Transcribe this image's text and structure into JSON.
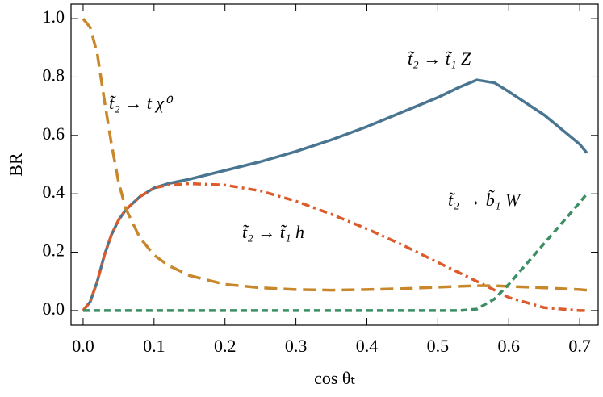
{
  "chart_data": {
    "type": "line",
    "xlabel": "cos θₜ",
    "ylabel": "BR",
    "annotations": [
      "t̃₂ → t χ⁰",
      "t̃₂ → t̃₁ Z",
      "t̃₂ → t̃₁ h",
      "t̃₂ → b̃₁ W"
    ],
    "x": [
      0,
      0.01,
      0.02,
      0.03,
      0.04,
      0.05,
      0.06,
      0.08,
      0.1,
      0.12,
      0.15,
      0.2,
      0.25,
      0.3,
      0.35,
      0.4,
      0.45,
      0.5,
      0.53,
      0.555,
      0.58,
      0.6,
      0.65,
      0.7,
      0.71
    ],
    "series": [
      {
        "color": "#4a7590",
        "dash": "none",
        "values": [
          0,
          0.03,
          0.1,
          0.19,
          0.26,
          0.31,
          0.345,
          0.39,
          0.42,
          0.435,
          0.45,
          0.48,
          0.51,
          0.545,
          0.585,
          0.63,
          0.68,
          0.73,
          0.765,
          0.79,
          0.78,
          0.75,
          0.67,
          0.57,
          0.54
        ]
      },
      {
        "color": "#db5b2b",
        "dash": "10,5,3,5",
        "values": [
          0,
          0.03,
          0.1,
          0.19,
          0.26,
          0.31,
          0.345,
          0.39,
          0.42,
          0.43,
          0.435,
          0.43,
          0.41,
          0.375,
          0.33,
          0.28,
          0.225,
          0.165,
          0.13,
          0.1,
          0.07,
          0.045,
          0.01,
          0,
          0
        ]
      },
      {
        "color": "#c8872a",
        "dash": "16,8",
        "values": [
          1.0,
          0.97,
          0.88,
          0.72,
          0.57,
          0.44,
          0.35,
          0.25,
          0.19,
          0.155,
          0.12,
          0.09,
          0.078,
          0.072,
          0.07,
          0.072,
          0.075,
          0.08,
          0.083,
          0.085,
          0.085,
          0.083,
          0.078,
          0.072,
          0.07
        ]
      },
      {
        "color": "#3c8f64",
        "dash": "8,5",
        "values": [
          0,
          0,
          0,
          0,
          0,
          0,
          0,
          0,
          0,
          0,
          0,
          0,
          0,
          0,
          0,
          0,
          0,
          0,
          0,
          0.005,
          0.04,
          0.09,
          0.23,
          0.37,
          0.4
        ]
      }
    ],
    "xlim": [
      -0.017,
      0.726
    ],
    "ylim": [
      -0.05,
      1.05
    ],
    "xticks": [
      {
        "value": 0,
        "label": "0.0"
      },
      0.1,
      0.2,
      0.3,
      0.4,
      0.5,
      0.6,
      0.7
    ],
    "yticks": [
      {
        "value": 0,
        "label": "0.0"
      },
      0.2,
      0.4,
      0.6,
      0.8,
      {
        "value": 1,
        "label": "1.0"
      }
    ],
    "grid": false
  }
}
